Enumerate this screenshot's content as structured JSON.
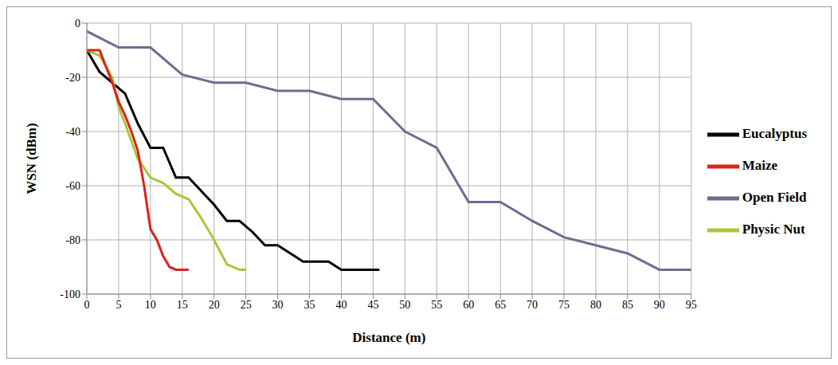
{
  "chart_data": {
    "type": "line",
    "x_label": "Distance (m)",
    "y_label": "WSN (dBm)",
    "xlim": [
      0,
      95
    ],
    "xticks": [
      0,
      5,
      10,
      15,
      20,
      25,
      30,
      35,
      40,
      45,
      50,
      55,
      60,
      65,
      70,
      75,
      80,
      85,
      90,
      95
    ],
    "ylim": [
      -100,
      0
    ],
    "yticks": [
      -100,
      -80,
      -60,
      -40,
      -20,
      0
    ],
    "grid": true,
    "legend": "right",
    "series": [
      {
        "name": "Open Field",
        "color": "#6b6e8f",
        "x": [
          0,
          5,
          10,
          15,
          20,
          25,
          30,
          35,
          40,
          45,
          50,
          55,
          60,
          65,
          70,
          75,
          80,
          85,
          90,
          95
        ],
        "values": [
          -3,
          -9,
          -9,
          -19,
          -22,
          -22,
          -25,
          -25,
          -28,
          -28,
          -40,
          -46,
          -66,
          -66,
          -73,
          -79,
          -82,
          -85,
          -91,
          -91
        ]
      },
      {
        "name": "Eucalyptus",
        "color": "#000000",
        "x": [
          0,
          2,
          4,
          6,
          8,
          10,
          12,
          14,
          16,
          18,
          20,
          22,
          24,
          26,
          28,
          30,
          32,
          34,
          36,
          38,
          40,
          42,
          44,
          46
        ],
        "values": [
          -10,
          -18,
          -22,
          -26,
          -37,
          -46,
          -46,
          -57,
          -57,
          -62,
          -67,
          -73,
          -73,
          -77,
          -82,
          -82,
          -85,
          -88,
          -88,
          -88,
          -91,
          -91,
          -91,
          -91
        ]
      },
      {
        "name": "Physic Nut",
        "color": "#a5c93a",
        "x": [
          0,
          2,
          4,
          5,
          6,
          8,
          10,
          12,
          14,
          16,
          18,
          20,
          22,
          24,
          25
        ],
        "values": [
          -10,
          -12,
          -20,
          -31,
          -37,
          -50,
          -57,
          -59,
          -63,
          -65,
          -72,
          -80,
          -89,
          -91,
          -91
        ]
      },
      {
        "name": "Maize",
        "color": "#e0201b",
        "x": [
          0,
          2,
          4,
          5,
          6,
          7,
          8,
          9,
          10,
          11,
          12,
          13,
          14,
          16
        ],
        "values": [
          -10,
          -10,
          -22,
          -29,
          -34,
          -40,
          -47,
          -60,
          -76,
          -80,
          -86,
          -90,
          -91,
          -91
        ]
      }
    ]
  }
}
